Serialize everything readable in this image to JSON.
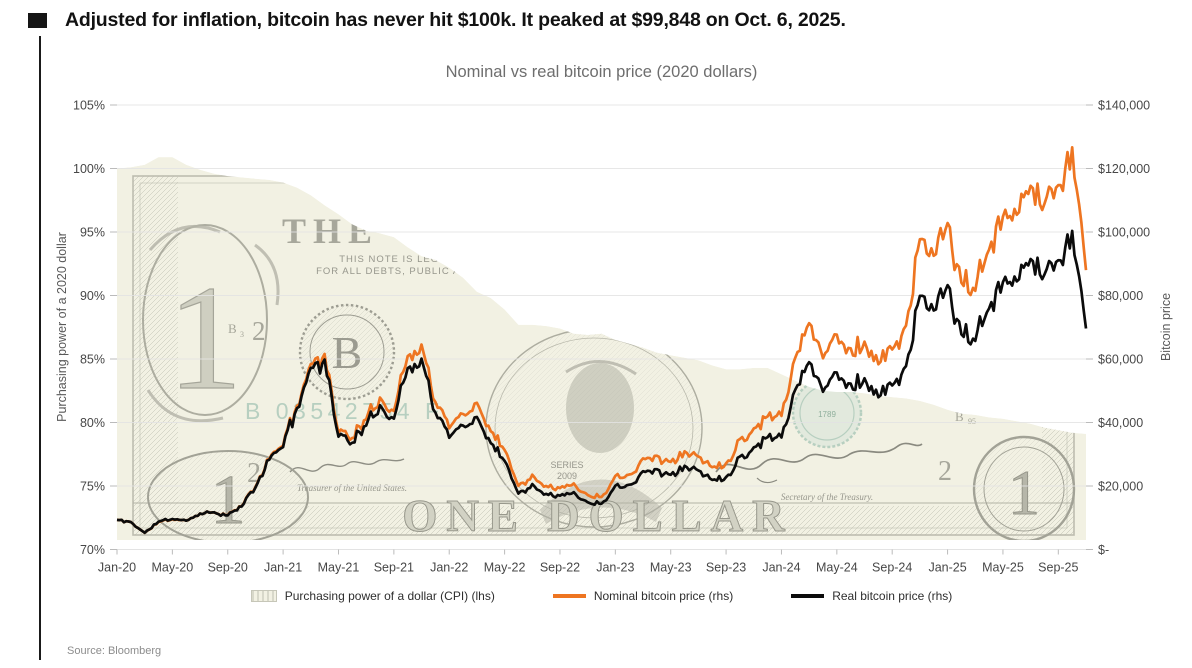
{
  "header": {
    "headline": "Adjusted for inflation, bitcoin has never hit $100k. It peaked at $99,848 on Oct. 6, 2025."
  },
  "footer": {
    "source": "Source: Bloomberg"
  },
  "legend": {
    "cpi_label": "Purchasing power of a dollar (CPI) (lhs)",
    "nominal_label": "Nominal bitcoin price (rhs)",
    "real_label": "Real bitcoin price (rhs)"
  },
  "colors": {
    "nominal_line": "#ee7521",
    "real_line": "#0b0b0b",
    "bill_bg": "#f2f1e3",
    "bill_ink": "#a9a99d",
    "bill_ink_light": "#c9c9bc",
    "seal_green": "#b7cfc0",
    "grid": "#e3e3e3",
    "tick": "#bbbbbb",
    "axis_text": "#474747",
    "title_text": "#6e6e6e"
  },
  "chart_data": {
    "type": "line",
    "title": "Nominal vs real bitcoin price (2020 dollars)",
    "x_tick_labels": [
      "Jan-20",
      "May-20",
      "Sep-20",
      "Jan-21",
      "May-21",
      "Sep-21",
      "Jan-22",
      "May-22",
      "Sep-22",
      "Jan-23",
      "May-23",
      "Sep-23",
      "Jan-24",
      "May-24",
      "Sep-24",
      "Jan-25",
      "May-25",
      "Sep-25"
    ],
    "months_per_x_tick": 4,
    "left_axis": {
      "label": "Purchasing power of a 2020 dollar",
      "ticks": [
        "105%",
        "100%",
        "95%",
        "90%",
        "85%",
        "80%",
        "75%",
        "70%"
      ],
      "min": 70,
      "max": 105,
      "unit": "percent"
    },
    "right_axis": {
      "label": "Bitcoin price",
      "ticks": [
        "$140,000",
        "$120,000",
        "$100,000",
        "$80,000",
        "$60,000",
        "$40,000",
        "$20,000",
        "$-"
      ],
      "min": 0,
      "max": 140000,
      "unit": "usd"
    },
    "grid": "horizontal-only",
    "legend_position": "bottom",
    "series": [
      {
        "name": "Purchasing power of a dollar (CPI) (lhs)",
        "axis": "left",
        "style": "area-dollar-bill",
        "unit": "% of 2020 dollar",
        "monthly_values_pct": [
          100.0,
          100.1,
          100.3,
          100.9,
          100.9,
          100.3,
          99.9,
          99.6,
          99.4,
          99.3,
          99.2,
          99.1,
          98.9,
          98.5,
          97.9,
          97.1,
          96.4,
          95.6,
          95.1,
          94.9,
          94.6,
          93.8,
          93.1,
          92.8,
          92.2,
          91.4,
          90.3,
          89.8,
          88.9,
          87.7,
          87.7,
          87.6,
          87.4,
          87.0,
          86.9,
          87.0,
          86.5,
          86.2,
          85.9,
          85.5,
          85.3,
          85.1,
          84.9,
          84.5,
          84.2,
          84.2,
          84.3,
          84.3,
          83.8,
          83.3,
          82.8,
          82.5,
          82.4,
          82.4,
          82.3,
          82.1,
          82.0,
          81.9,
          81.7,
          81.4,
          81.0,
          80.7,
          80.6,
          80.4,
          80.3,
          80.1,
          79.9,
          79.6,
          79.4,
          79.2,
          79.1
        ]
      },
      {
        "name": "Nominal bitcoin price (rhs)",
        "axis": "right",
        "style": "line",
        "color": "#ee7521",
        "unit": "USD thousands",
        "monthly_values_kusd": [
          9.3,
          8.6,
          5.2,
          8.7,
          9.5,
          9.1,
          11.3,
          11.7,
          10.8,
          13.8,
          19.7,
          29.0,
          33.1,
          45.2,
          58.8,
          61.0,
          37.3,
          35.0,
          41.5,
          47.2,
          43.8,
          61.3,
          64.0,
          46.2,
          38.5,
          43.2,
          45.5,
          37.6,
          31.8,
          19.9,
          23.3,
          20.0,
          19.4,
          20.5,
          17.2,
          16.5,
          23.1,
          23.5,
          28.5,
          29.2,
          27.2,
          30.5,
          29.2,
          26.0,
          27.0,
          34.7,
          37.7,
          42.3,
          42.6,
          61.2,
          71.3,
          60.6,
          67.5,
          62.7,
          64.6,
          58.9,
          63.3,
          70.2,
          96.4,
          93.4,
          102.1,
          84.3,
          82.5,
          94.2,
          104.6,
          107.1,
          115.8,
          108.2,
          114.0,
          125.0,
          88.0
        ]
      },
      {
        "name": "Real bitcoin price (rhs)",
        "axis": "right",
        "style": "line",
        "color": "#0b0b0b",
        "unit": "USD thousands (2020 dollars)",
        "monthly_values_kusd": [
          9.3,
          8.6,
          5.2,
          8.8,
          9.6,
          9.1,
          11.3,
          11.7,
          10.7,
          13.7,
          19.5,
          28.7,
          32.7,
          44.5,
          57.6,
          59.2,
          36.0,
          33.5,
          39.5,
          44.8,
          41.4,
          57.5,
          59.6,
          42.9,
          35.5,
          39.5,
          41.1,
          33.8,
          28.3,
          17.5,
          20.4,
          17.5,
          17.0,
          17.8,
          14.9,
          14.4,
          20.0,
          20.3,
          24.5,
          25.0,
          23.2,
          26.0,
          24.8,
          22.0,
          22.7,
          29.2,
          31.8,
          35.7,
          35.7,
          51.0,
          59.0,
          50.0,
          55.6,
          51.7,
          53.2,
          48.4,
          51.9,
          57.5,
          78.8,
          76.0,
          82.7,
          68.0,
          66.5,
          75.7,
          84.0,
          85.8,
          92.5,
          86.1,
          90.5,
          99.0,
          69.6
        ]
      }
    ]
  }
}
